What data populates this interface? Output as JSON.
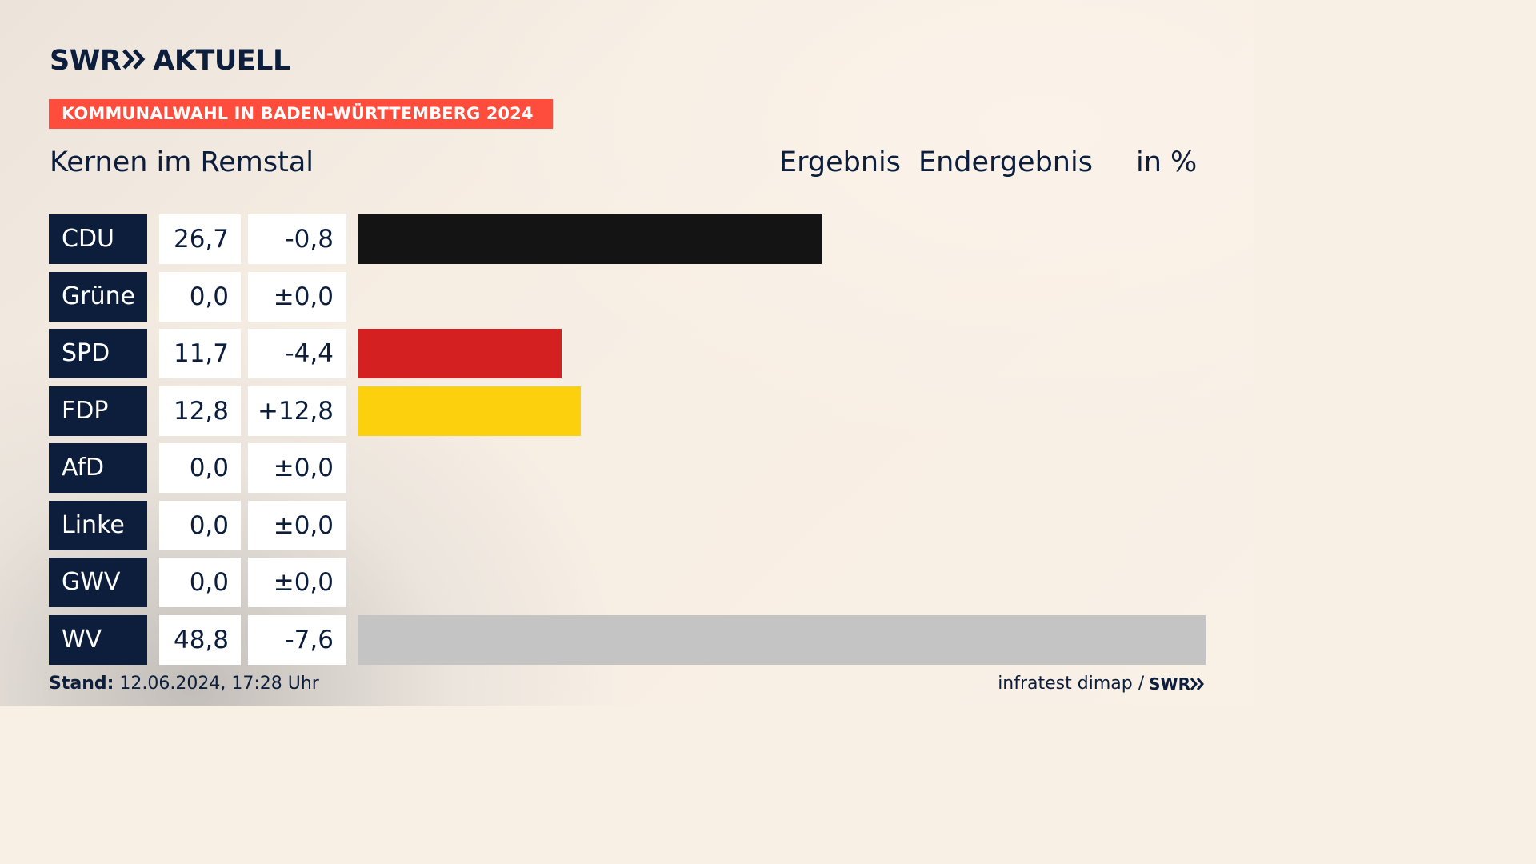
{
  "header": {
    "brand": "SWR",
    "brand_section": "AKTUELL",
    "banner": "KOMMUNALWAHL IN BADEN-WÜRTTEMBERG 2024",
    "place": "Kernen im Remstal",
    "col_result": "Ergebnis",
    "col_final": "Endergebnis",
    "col_unit": "in %"
  },
  "chart_data": {
    "type": "bar",
    "orientation": "horizontal",
    "categories": [
      "CDU",
      "Grüne",
      "SPD",
      "FDP",
      "AfD",
      "Linke",
      "GWV",
      "WV"
    ],
    "values": [
      26.7,
      0.0,
      11.7,
      12.8,
      0.0,
      0.0,
      0.0,
      48.8
    ],
    "value_labels": [
      "26,7",
      "0,0",
      "11,7",
      "12,8",
      "0,0",
      "0,0",
      "0,0",
      "48,8"
    ],
    "diff_labels": [
      "-0,8",
      "±0,0",
      "-4,4",
      "+12,8",
      "±0,0",
      "±0,0",
      "±0,0",
      "-7,6"
    ],
    "colors": [
      "#141414",
      "#4a9a3a",
      "#d42020",
      "#fdd00d",
      "#009ee0",
      "#be3075",
      "#7a7a7a",
      "#c4c4c4"
    ],
    "unit": "in %"
  },
  "footer": {
    "stand_label": "Stand:",
    "stand_value": "12.06.2024, 17:28 Uhr",
    "source": "infratest dimap /",
    "source_brand": "SWR"
  }
}
